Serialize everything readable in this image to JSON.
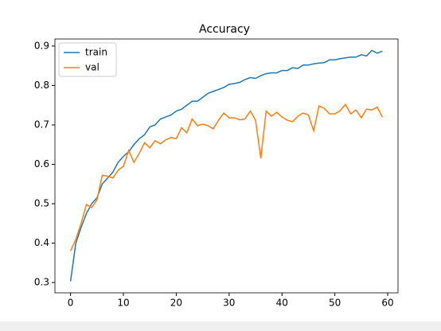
{
  "chart_data": {
    "type": "line",
    "title": "Accuracy",
    "x": [
      0,
      1,
      2,
      3,
      4,
      5,
      6,
      7,
      8,
      9,
      10,
      11,
      12,
      13,
      14,
      15,
      16,
      17,
      18,
      19,
      20,
      21,
      22,
      23,
      24,
      25,
      26,
      27,
      28,
      29,
      30,
      31,
      32,
      33,
      34,
      35,
      36,
      37,
      38,
      39,
      40,
      41,
      42,
      43,
      44,
      45,
      46,
      47,
      48,
      49,
      50,
      51,
      52,
      53,
      54,
      55,
      56,
      57,
      58,
      59
    ],
    "series": [
      {
        "name": "train",
        "color": "#1f77b4",
        "values": [
          0.303,
          0.4,
          0.44,
          0.475,
          0.5,
          0.515,
          0.55,
          0.565,
          0.58,
          0.605,
          0.62,
          0.632,
          0.65,
          0.665,
          0.675,
          0.695,
          0.7,
          0.715,
          0.72,
          0.725,
          0.735,
          0.74,
          0.75,
          0.76,
          0.76,
          0.77,
          0.78,
          0.785,
          0.79,
          0.795,
          0.803,
          0.805,
          0.808,
          0.815,
          0.82,
          0.818,
          0.825,
          0.83,
          0.832,
          0.832,
          0.838,
          0.838,
          0.845,
          0.843,
          0.852,
          0.852,
          0.855,
          0.857,
          0.858,
          0.865,
          0.865,
          0.868,
          0.87,
          0.872,
          0.872,
          0.878,
          0.875,
          0.889,
          0.882,
          0.887
        ]
      },
      {
        "name": "val",
        "color": "#ff7f0e",
        "values": [
          0.38,
          0.41,
          0.45,
          0.498,
          0.49,
          0.51,
          0.572,
          0.57,
          0.565,
          0.585,
          0.595,
          0.635,
          0.605,
          0.628,
          0.655,
          0.642,
          0.66,
          0.652,
          0.662,
          0.668,
          0.665,
          0.693,
          0.68,
          0.715,
          0.698,
          0.702,
          0.698,
          0.69,
          0.712,
          0.73,
          0.718,
          0.718,
          0.713,
          0.715,
          0.735,
          0.712,
          0.615,
          0.735,
          0.722,
          0.732,
          0.72,
          0.712,
          0.708,
          0.722,
          0.73,
          0.725,
          0.685,
          0.748,
          0.742,
          0.728,
          0.728,
          0.736,
          0.752,
          0.728,
          0.738,
          0.718,
          0.74,
          0.738,
          0.745,
          0.72
        ]
      }
    ],
    "xlim": [
      -2.95,
      61.95
    ],
    "xticks": [
      0,
      10,
      20,
      30,
      40,
      50,
      60
    ],
    "ylim": [
      0.274,
      0.918
    ],
    "yticks": [
      0.3,
      0.4,
      0.5,
      0.6,
      0.7,
      0.8,
      0.9
    ],
    "legend": "upper left"
  }
}
